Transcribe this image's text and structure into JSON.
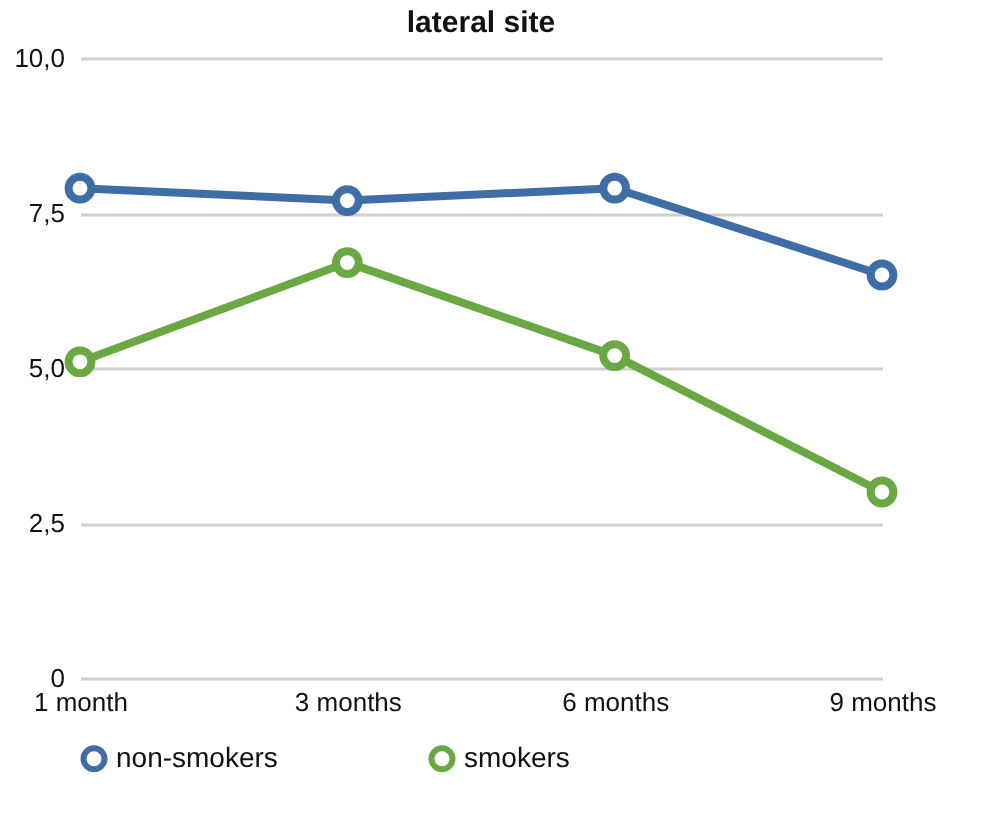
{
  "chart_data": {
    "type": "line",
    "title": "lateral site",
    "categories": [
      "1 month",
      "3 months",
      "6 months",
      "9 months"
    ],
    "series": [
      {
        "name": "non-smokers",
        "color": "#3f6ea6",
        "values": [
          7.9,
          7.7,
          7.9,
          6.5
        ]
      },
      {
        "name": "smokers",
        "color": "#6aa843",
        "values": [
          5.1,
          6.7,
          5.2,
          3.0
        ]
      }
    ],
    "ylim": [
      0,
      10
    ],
    "yticks": [
      0,
      {
        "value": 2.5,
        "label": "2,5"
      },
      {
        "value": 5,
        "label": "5,0"
      },
      {
        "value": 7.5,
        "label": "7,5"
      },
      {
        "value": 10,
        "label": "10,0"
      }
    ],
    "grid": "y",
    "legend": "bottom",
    "marker": "circle",
    "line_style": "solid"
  }
}
